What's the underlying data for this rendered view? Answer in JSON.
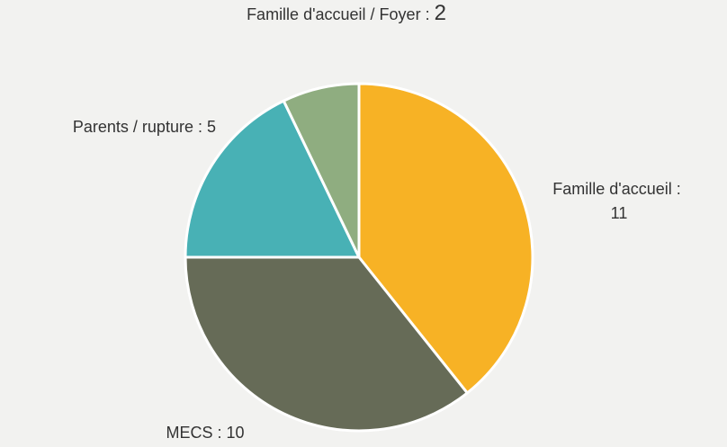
{
  "chart_data": {
    "type": "pie",
    "categories": [
      "Famille d'accueil",
      "MECS",
      "Parents / rupture",
      "Famille d'accueil / Foyer"
    ],
    "values": [
      11,
      10,
      5,
      2
    ],
    "colors": [
      "#f7b225",
      "#666b57",
      "#48b1b5",
      "#8fad80"
    ],
    "label_separator": " : "
  }
}
